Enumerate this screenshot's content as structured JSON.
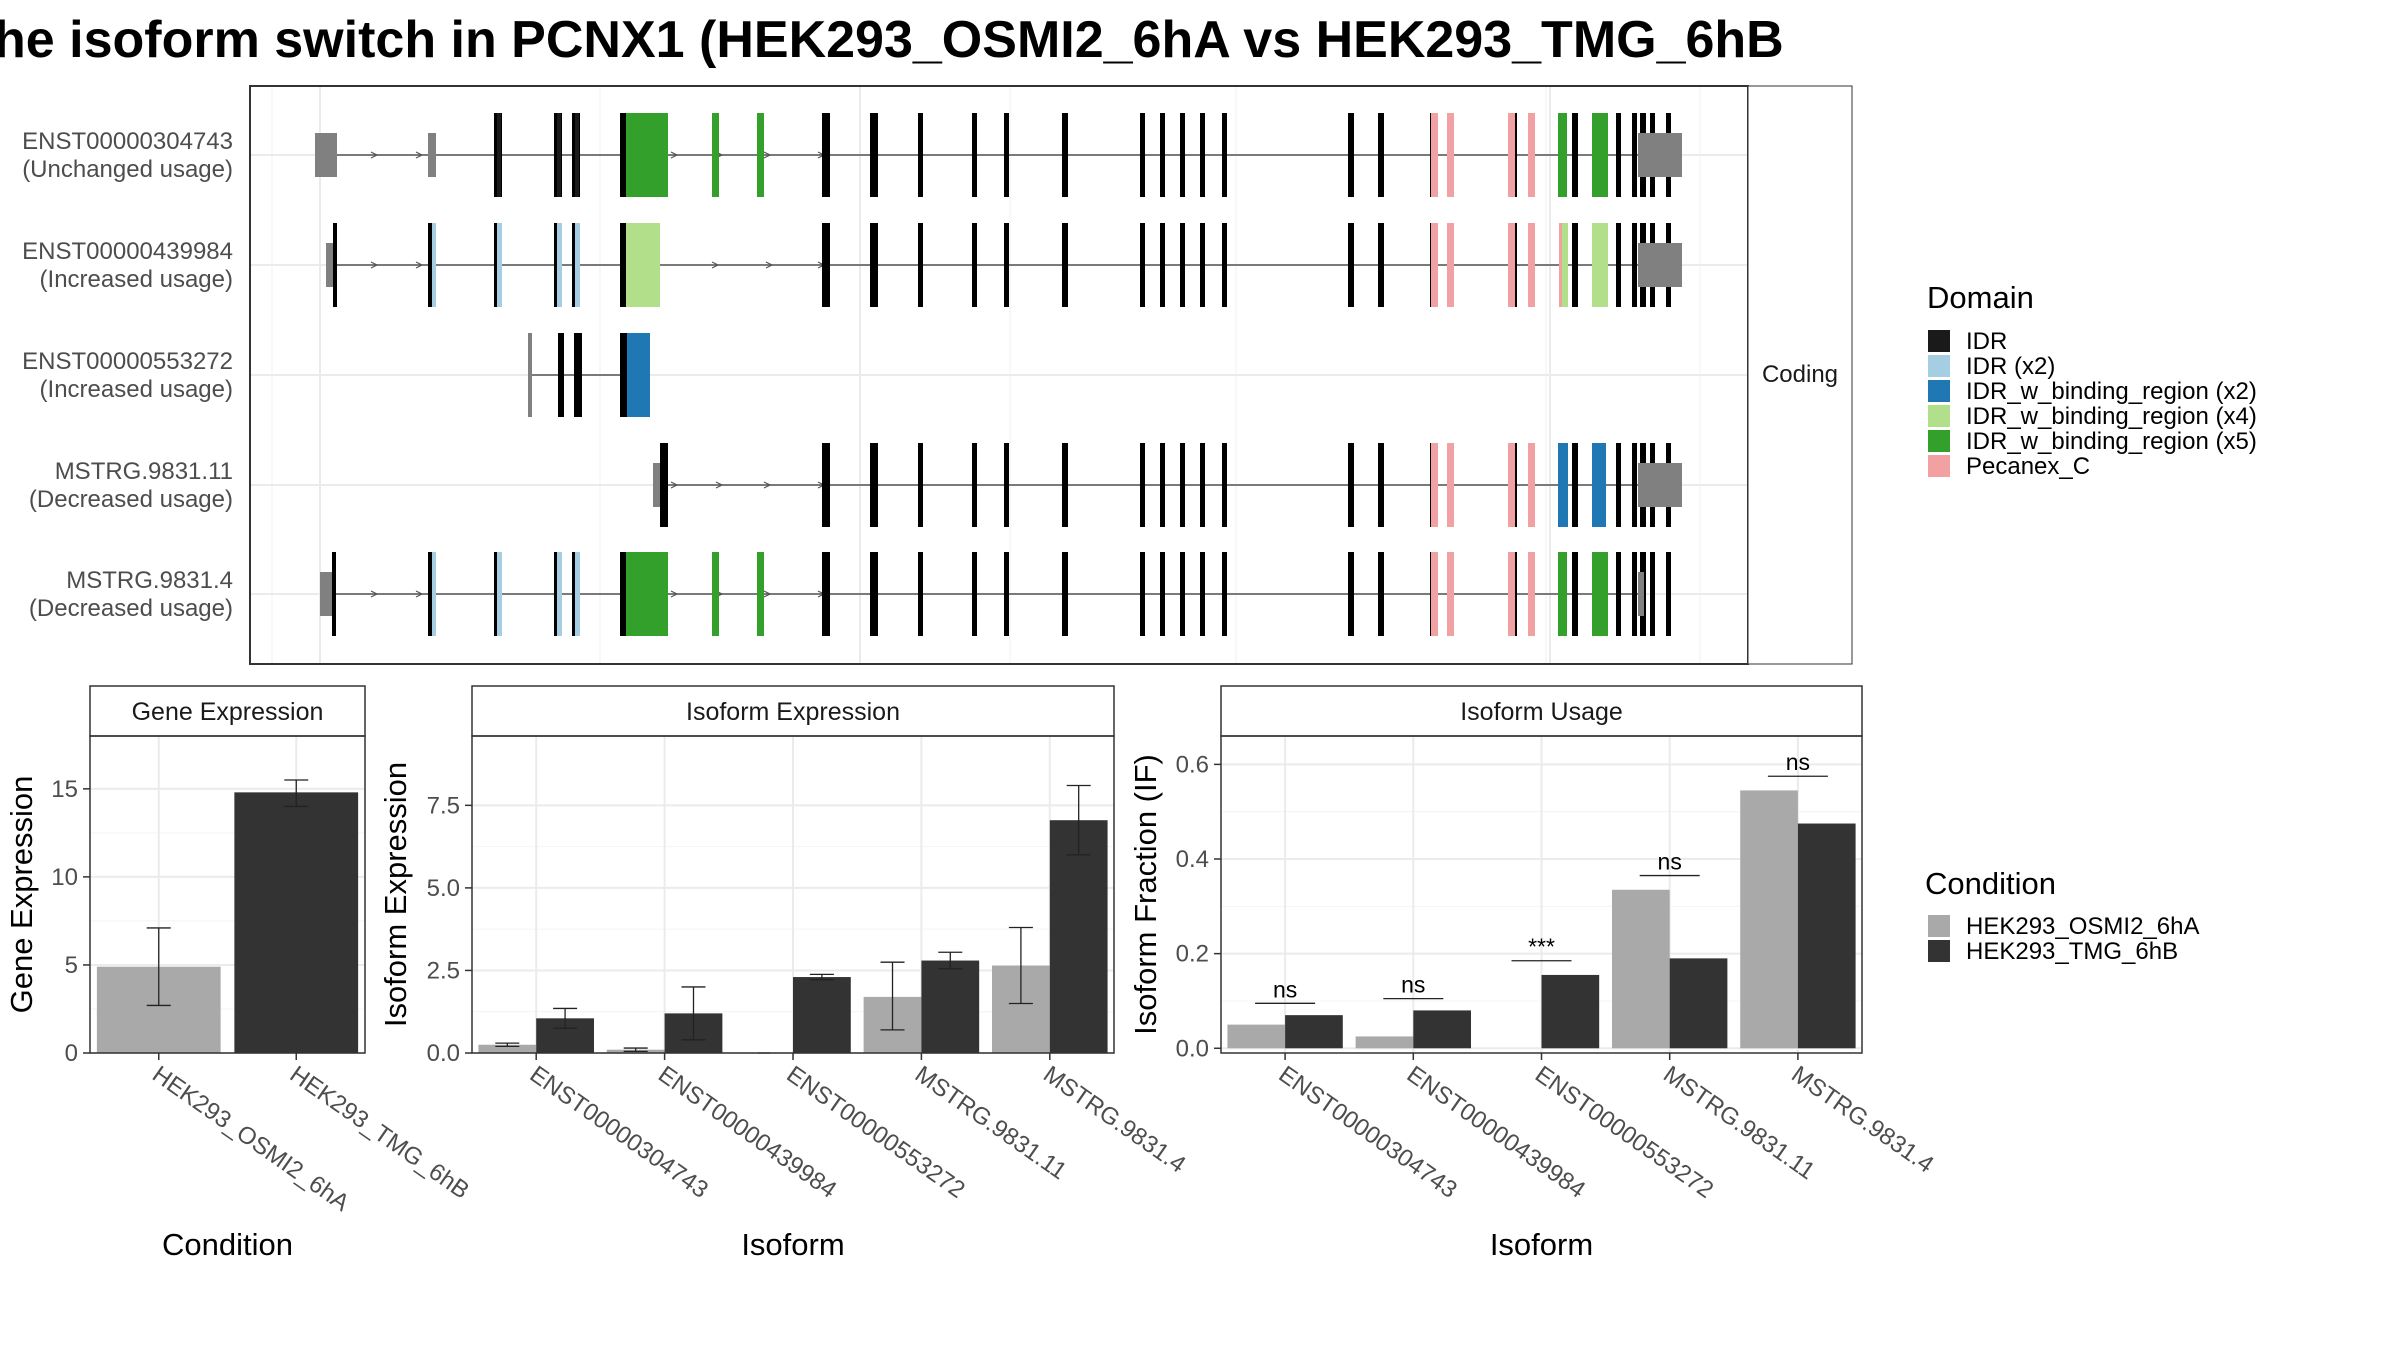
{
  "title": "he isoform switch in PCNX1 (HEK293_OSMI2_6hA vs HEK293_TMG_6hB",
  "colors": {
    "IDR": "#1a1a1a",
    "IDR (x2)": "#a6cee3",
    "IDR_w_binding_region (x2)": "#1f78b4",
    "IDR_w_binding_region (x4)": "#b2df8a",
    "IDR_w_binding_region (x5)": "#33a02c",
    "Pecanex_C": "#f1a1a1",
    "exon": "#808080",
    "cond_a": "#a9a9a9",
    "cond_b": "#333333",
    "panel_border": "#333333",
    "strip_fill": "#ffffff",
    "grid": "#ebebeb"
  },
  "structure": {
    "facet_label": "Coding",
    "legend_title": "Domain",
    "legend_items": [
      "IDR",
      "IDR (x2)",
      "IDR_w_binding_region (x2)",
      "IDR_w_binding_region (x4)",
      "IDR_w_binding_region (x5)",
      "Pecanex_C"
    ],
    "transcripts": [
      {
        "id": "ENST00000304743",
        "usage": "(Unchanged usage)"
      },
      {
        "id": "ENST00000439984",
        "usage": "(Increased usage)"
      },
      {
        "id": "ENST00000553272",
        "usage": "(Increased usage)"
      },
      {
        "id": "MSTRG.9831.11",
        "usage": "(Decreased usage)"
      },
      {
        "id": "MSTRG.9831.4",
        "usage": "(Decreased usage)"
      }
    ]
  },
  "condition_legend": {
    "title": "Condition",
    "items": [
      "HEK293_OSMI2_6hA",
      "HEK293_TMG_6hB"
    ]
  },
  "chart_data": [
    {
      "type": "bar",
      "title": "Gene Expression",
      "xlabel": "Condition",
      "ylabel": "Gene Expression",
      "ylim": [
        0,
        18
      ],
      "yticks": [
        0,
        5,
        10,
        15
      ],
      "categories": [
        "HEK293_OSMI2_6hA",
        "HEK293_TMG_6hB"
      ],
      "values": [
        4.9,
        14.8
      ],
      "error_low": [
        2.7,
        14.0
      ],
      "error_high": [
        7.1,
        15.5
      ]
    },
    {
      "type": "bar",
      "title": "Isoform Expression",
      "xlabel": "Isoform",
      "ylabel": "Isoform Expression",
      "ylim": [
        0,
        9.6
      ],
      "yticks": [
        0.0,
        2.5,
        5.0,
        7.5
      ],
      "categories": [
        "ENST00000304743",
        "ENST00000439984",
        "ENST00000553272",
        "MSTRG.9831.11",
        "MSTRG.9831.4"
      ],
      "series": [
        {
          "name": "HEK293_OSMI2_6hA",
          "values": [
            0.25,
            0.1,
            0.0,
            1.7,
            2.65
          ],
          "error_low": [
            0.2,
            0.05,
            0.0,
            0.7,
            1.5
          ],
          "error_high": [
            0.3,
            0.15,
            0.0,
            2.75,
            3.8
          ]
        },
        {
          "name": "HEK293_TMG_6hB",
          "values": [
            1.05,
            1.2,
            2.3,
            2.8,
            7.05
          ],
          "error_low": [
            0.75,
            0.4,
            2.22,
            2.55,
            6.0
          ],
          "error_high": [
            1.35,
            2.0,
            2.38,
            3.05,
            8.1
          ]
        }
      ]
    },
    {
      "type": "bar",
      "title": "Isoform Usage",
      "xlabel": "Isoform",
      "ylabel": "Isoform Fraction (IF)",
      "ylim": [
        -0.01,
        0.66
      ],
      "yticks": [
        0.0,
        0.2,
        0.4,
        0.6
      ],
      "categories": [
        "ENST00000304743",
        "ENST00000439984",
        "ENST00000553272",
        "MSTRG.9831.11",
        "MSTRG.9831.4"
      ],
      "series": [
        {
          "name": "HEK293_OSMI2_6hA",
          "values": [
            0.05,
            0.025,
            0.0,
            0.335,
            0.545
          ]
        },
        {
          "name": "HEK293_TMG_6hB",
          "values": [
            0.07,
            0.08,
            0.155,
            0.19,
            0.475
          ]
        }
      ],
      "significance": [
        "ns",
        "ns",
        "***",
        "ns",
        "ns"
      ],
      "sig_y": [
        0.095,
        0.105,
        0.185,
        0.365,
        0.575
      ]
    }
  ]
}
